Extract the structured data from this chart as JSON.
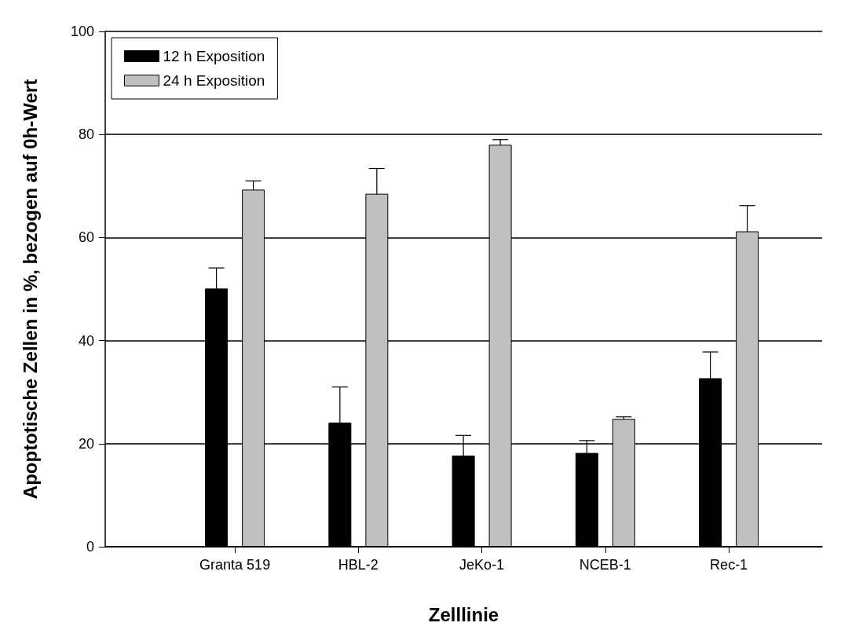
{
  "chart_data": {
    "type": "bar",
    "xlabel": "Zelllinie",
    "ylabel": "Apoptotische Zellen in %, bezogen auf 0h-Wert",
    "categories": [
      "Granta 519",
      "HBL-2",
      "JeKo-1",
      "NCEB-1",
      "Rec-1"
    ],
    "series": [
      {
        "name": "12 h Exposition",
        "color": "#000000",
        "values": [
          50.1,
          24.1,
          17.7,
          18.2,
          32.7
        ],
        "errors": [
          4.0,
          6.9,
          3.9,
          2.4,
          5.1
        ]
      },
      {
        "name": "24 h Exposition",
        "color": "#c0c0c0",
        "values": [
          69.3,
          68.5,
          78.0,
          24.8,
          61.2
        ],
        "errors": [
          1.7,
          4.9,
          1.0,
          0.4,
          5.0
        ]
      }
    ],
    "ylim": [
      0,
      100
    ],
    "yticks": [
      0,
      20,
      40,
      60,
      80,
      100
    ],
    "grid": "y",
    "legend": "top left"
  }
}
